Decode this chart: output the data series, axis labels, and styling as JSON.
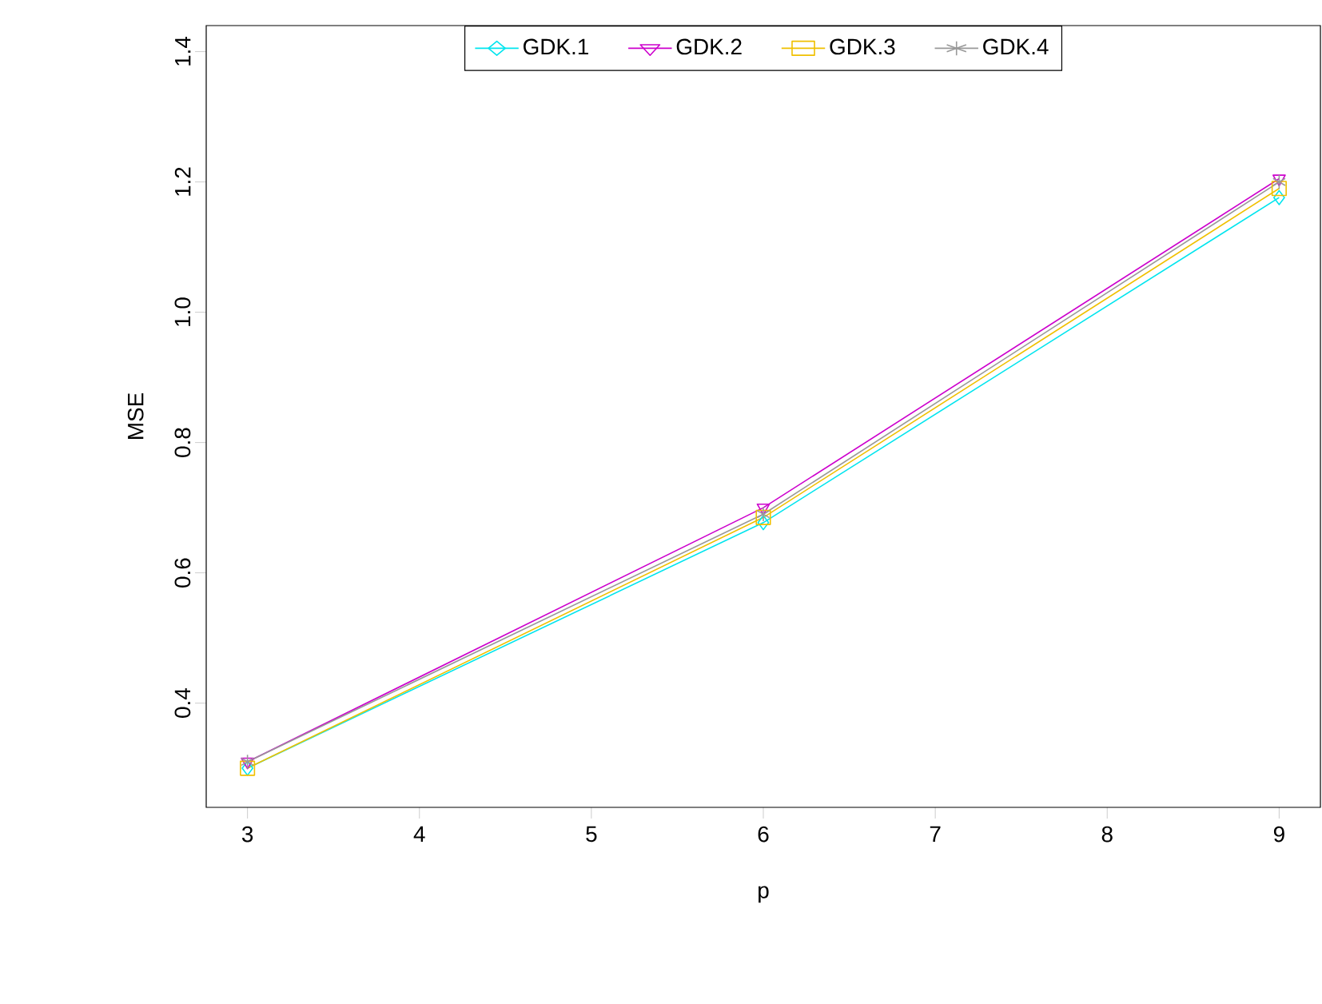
{
  "chart_data": {
    "type": "line",
    "xlabel": "p",
    "ylabel": "MSE",
    "x": [
      3,
      6,
      9
    ],
    "series": [
      {
        "name": "GDK.1",
        "color": "#00e5ee",
        "marker": "diamond",
        "values": [
          0.3,
          0.677,
          1.176
        ]
      },
      {
        "name": "GDK.2",
        "color": "#cd00cd",
        "marker": "triangle",
        "values": [
          0.31,
          0.7,
          1.205
        ]
      },
      {
        "name": "GDK.3",
        "color": "#f0c000",
        "marker": "square",
        "values": [
          0.3,
          0.685,
          1.19
        ]
      },
      {
        "name": "GDK.4",
        "color": "#999999",
        "marker": "cross",
        "values": [
          0.31,
          0.69,
          1.2
        ]
      }
    ],
    "xlim": [
      2.76,
      9.24
    ],
    "ylim": [
      0.24,
      1.44
    ],
    "xticks": [
      3,
      4,
      5,
      6,
      7,
      8,
      9
    ],
    "yticks": [
      0.4,
      0.6,
      0.8,
      {
        "value": 1.0,
        "label": "1.0"
      },
      1.2,
      1.4
    ],
    "grid": false,
    "legend": "top",
    "line_style": "solid"
  }
}
